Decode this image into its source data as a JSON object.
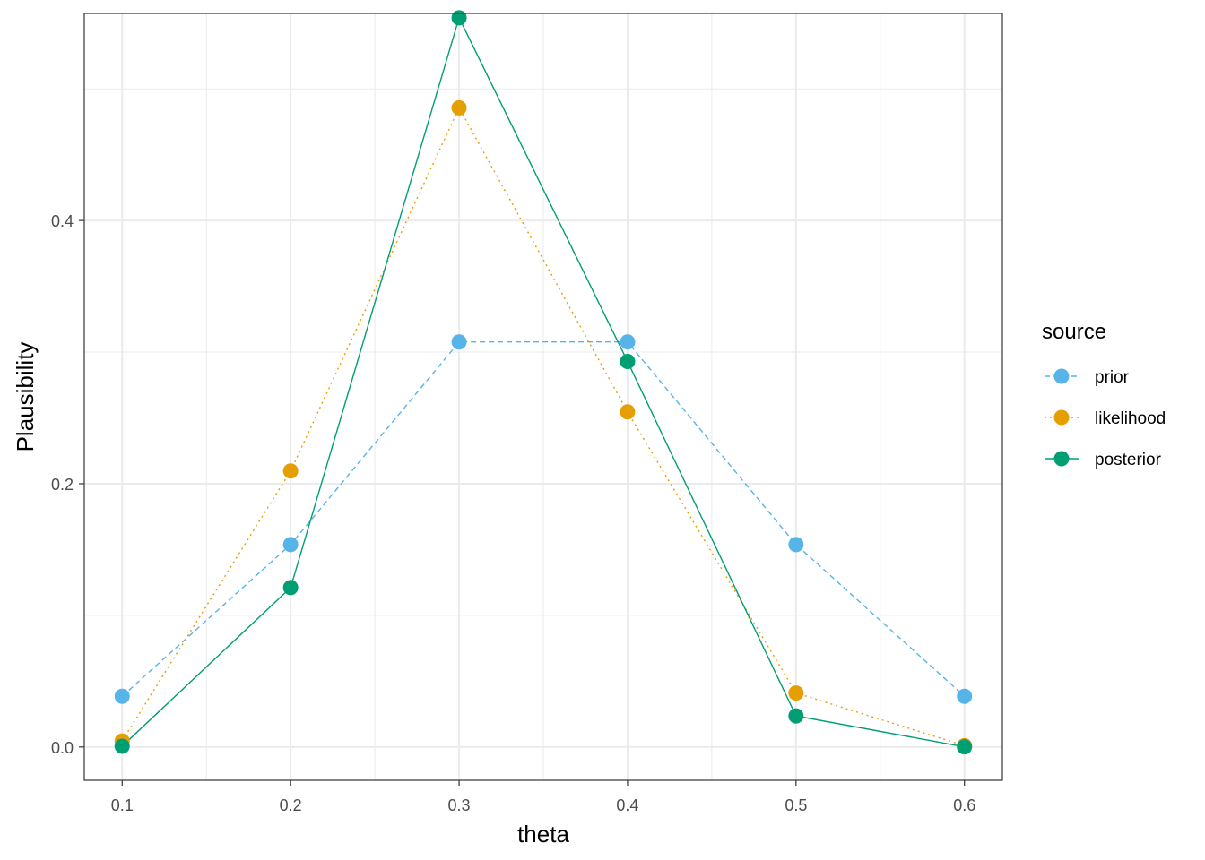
{
  "chart_data": {
    "type": "line",
    "title": "",
    "xlabel": "theta",
    "ylabel": "Plausibility",
    "x": [
      0.1,
      0.2,
      0.3,
      0.4,
      0.5,
      0.6
    ],
    "x_ticks": [
      0.1,
      0.2,
      0.3,
      0.4,
      0.5,
      0.6
    ],
    "x_tick_labels": [
      "0.1",
      "0.2",
      "0.3",
      "0.4",
      "0.5",
      "0.6"
    ],
    "y_ticks": [
      0.0,
      0.2,
      0.4
    ],
    "y_tick_labels": [
      "0.0",
      "0.2",
      "0.4"
    ],
    "xlim": [
      0.0775,
      0.6225
    ],
    "ylim": [
      -0.0253,
      0.5573
    ],
    "grid": true,
    "legend": {
      "title": "source",
      "position": "right"
    },
    "series": [
      {
        "name": "prior",
        "color": "#56B4E9",
        "linestyle": "dashed",
        "values": [
          0.0385,
          0.1538,
          0.3077,
          0.3077,
          0.1538,
          0.0385
        ]
      },
      {
        "name": "likelihood",
        "color": "#E69F00",
        "linestyle": "dotted",
        "values": [
          0.0046,
          0.2097,
          0.4856,
          0.2546,
          0.041,
          0.001
        ]
      },
      {
        "name": "posterior",
        "color": "#009E73",
        "linestyle": "solid",
        "values": [
          0.0006,
          0.1211,
          0.554,
          0.2929,
          0.0236,
          0.0001
        ]
      }
    ]
  }
}
